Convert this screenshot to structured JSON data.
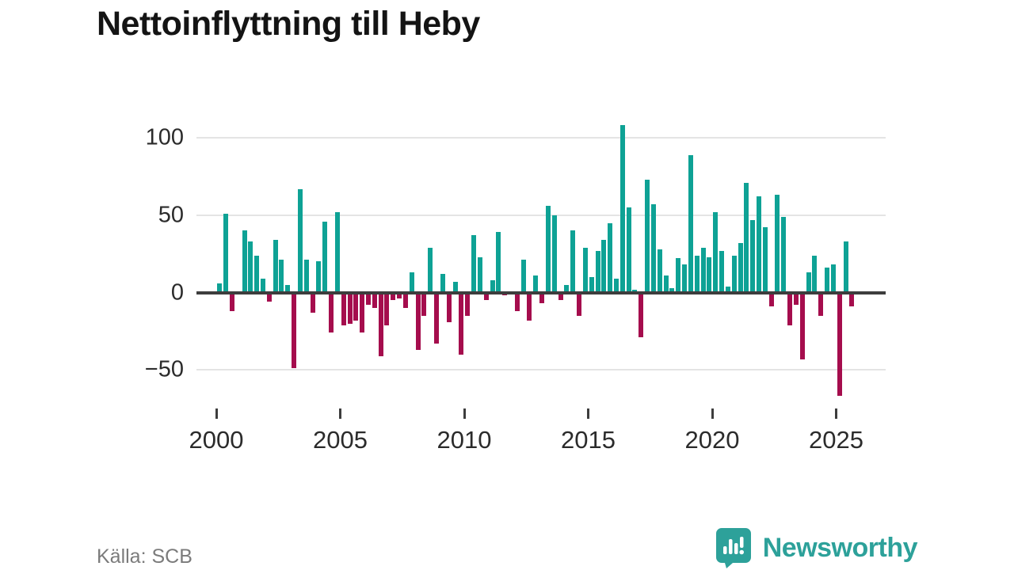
{
  "title": "Nettoinflyttning till Heby",
  "source": "Källa: SCB",
  "branding": {
    "name": "Newsworthy",
    "logo_icon": "speech-bubble-with-bar-chart-and-exclamation"
  },
  "colors": {
    "positive_bar": "#0ea295",
    "negative_bar": "#a50d4d",
    "grid": "#e4e4e4",
    "zero_axis": "#3d3d3d",
    "tick_text": "#2b2b2b",
    "muted_text": "#7b7b7b",
    "brand_teal": "#2da19a",
    "title_text": "#141414"
  },
  "chart_data": {
    "type": "bar",
    "title": "Nettoinflyttning till Heby",
    "xlabel": "",
    "ylabel": "",
    "frequency": "quarterly",
    "x_start": "2000-Q1",
    "x_end": "2025-Q3",
    "ylim": [
      -75,
      115
    ],
    "grid": "horizontal",
    "legend": "none",
    "y_ticks": [
      100,
      50,
      0,
      -50
    ],
    "y_tick_labels": [
      "100",
      "50",
      "0",
      "−50"
    ],
    "x_ticks": [
      2000,
      2005,
      2010,
      2015,
      2020,
      2025
    ],
    "x_tick_labels": [
      "2000",
      "2005",
      "2010",
      "2015",
      "2020",
      "2025"
    ],
    "values": [
      6,
      51,
      -12,
      0,
      40,
      33,
      24,
      9,
      -6,
      34,
      21,
      5,
      -49,
      67,
      21,
      -13,
      20,
      46,
      -26,
      52,
      -21,
      -20,
      -18,
      -26,
      -8,
      -10,
      -41,
      -21,
      -5,
      -4,
      -10,
      13,
      -37,
      -15,
      29,
      -33,
      12,
      -19,
      7,
      -40,
      -15,
      37,
      23,
      -5,
      8,
      39,
      -2,
      0,
      -12,
      21,
      -18,
      11,
      -7,
      56,
      50,
      -5,
      5,
      40,
      -15,
      29,
      10,
      27,
      34,
      45,
      9,
      108,
      55,
      2,
      -29,
      73,
      57,
      28,
      11,
      3,
      22,
      18,
      89,
      24,
      29,
      23,
      52,
      27,
      4,
      24,
      32,
      71,
      47,
      62,
      42,
      -9,
      63,
      49,
      -21,
      -8,
      -43,
      13,
      24,
      -15,
      16,
      18,
      -67,
      33,
      -9
    ]
  },
  "layout_note_values_unit": "persons per quarter"
}
